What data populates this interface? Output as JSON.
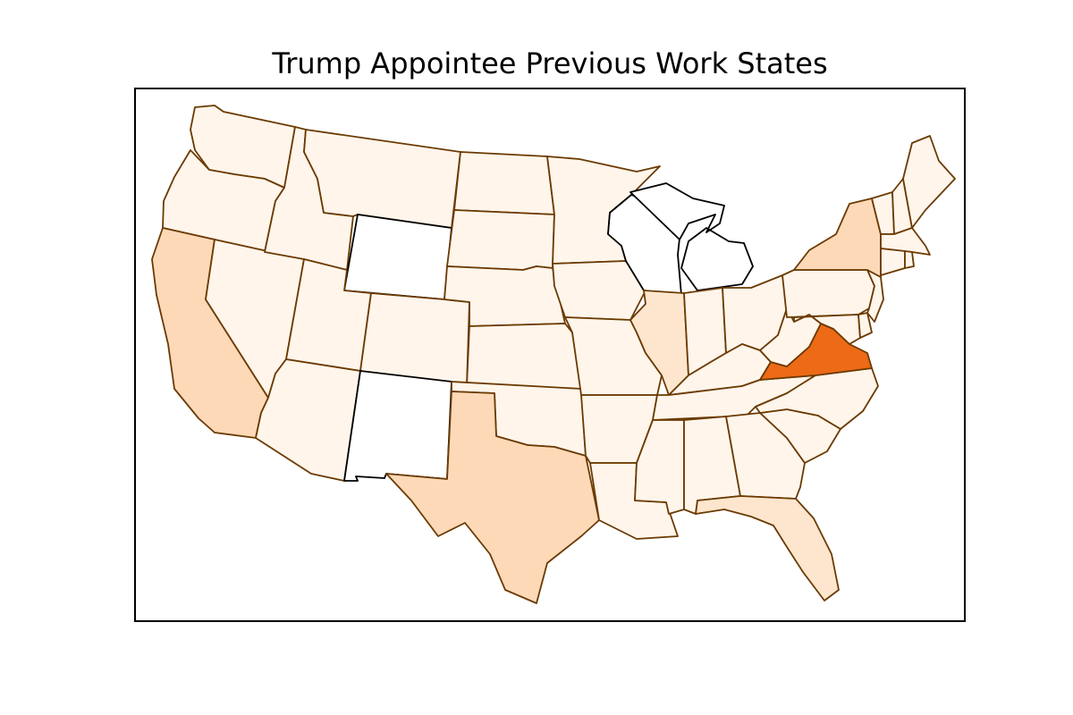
{
  "title": "Trump Appointee Previous Work States",
  "colors": {
    "none": "#ffffff",
    "low": "#fff5eb",
    "medium": "#fee6ce",
    "mid_high": "#fdd9b8",
    "high": "#ed6a16",
    "border_filled": "#6b3a00",
    "border_empty": "#000000"
  },
  "state_levels": {
    "WA": "low",
    "OR": "low",
    "CA": "mid_high",
    "NV": "low",
    "ID": "low",
    "MT": "low",
    "WY": "none",
    "UT": "low",
    "AZ": "low",
    "CO": "low",
    "NM": "none",
    "ND": "low",
    "SD": "low",
    "NE": "low",
    "KS": "low",
    "OK": "low",
    "TX": "mid_high",
    "MN": "low",
    "IA": "low",
    "MO": "low",
    "AR": "low",
    "LA": "low",
    "WI": "none",
    "MI": "none",
    "IL": "medium",
    "IN": "low",
    "OH": "low",
    "KY": "low",
    "TN": "low",
    "MS": "low",
    "AL": "low",
    "GA": "low",
    "FL": "medium",
    "SC": "low",
    "NC": "low",
    "VA": "high",
    "WV": "low",
    "PA": "low",
    "NY": "mid_high",
    "VT": "low",
    "NH": "low",
    "ME": "low",
    "MA": "low",
    "RI": "low",
    "CT": "low",
    "NJ": "low",
    "DE": "low",
    "MD": "low"
  }
}
